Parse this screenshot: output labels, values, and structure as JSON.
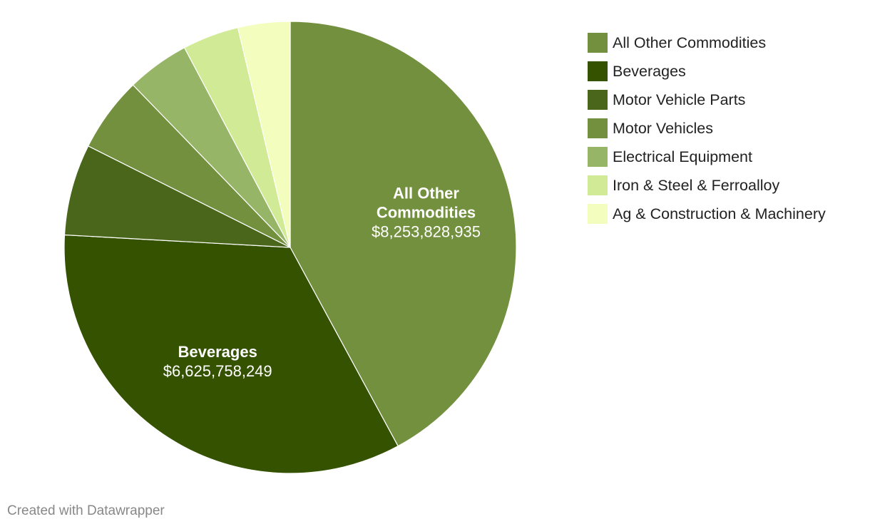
{
  "chart_data": {
    "type": "pie",
    "title": "",
    "unit_prefix": "$",
    "slices": [
      {
        "label": "All Other Commodities",
        "value": 8253828935,
        "display_value": "$8,253,828,935",
        "color": "#72903e",
        "show_label": true
      },
      {
        "label": "Beverages",
        "value": 6625758249,
        "display_value": "$6,625,758,249",
        "color": "#355200",
        "show_label": true
      },
      {
        "label": "Motor Vehicle Parts",
        "value": 1280000000,
        "display_value": "",
        "color": "#4a661b",
        "show_label": false
      },
      {
        "label": "Motor Vehicles",
        "value": 1050000000,
        "display_value": "",
        "color": "#72903e",
        "show_label": false
      },
      {
        "label": "Electrical Equipment",
        "value": 880000000,
        "display_value": "",
        "color": "#97b567",
        "show_label": false
      },
      {
        "label": "Iron & Steel & Ferroalloy",
        "value": 790000000,
        "display_value": "",
        "color": "#d1ea96",
        "show_label": false
      },
      {
        "label": "Ag & Construction & Machinery",
        "value": 730000000,
        "display_value": "",
        "color": "#f2fdbe",
        "show_label": false
      }
    ],
    "legend_position": "right"
  },
  "footer": {
    "credit": "Created with Datawrapper"
  }
}
